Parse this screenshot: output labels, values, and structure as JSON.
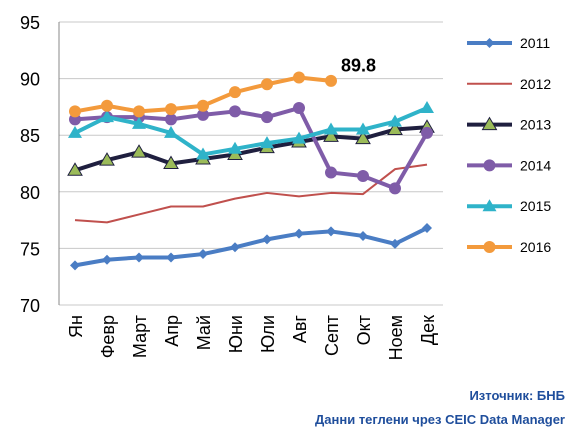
{
  "chart_data": {
    "type": "line",
    "categories": [
      "Ян",
      "Февр",
      "Март",
      "Апр",
      "Май",
      "Юни",
      "Юли",
      "Авг",
      "Септ",
      "Окт",
      "Ноем",
      "Дек"
    ],
    "series": [
      {
        "name": "2011",
        "color": "#4a7dc4",
        "marker": "diamond",
        "values": [
          73.5,
          74.0,
          74.2,
          74.2,
          74.5,
          75.1,
          75.8,
          76.3,
          76.5,
          76.1,
          75.4,
          76.8
        ]
      },
      {
        "name": "2012",
        "color": "#c0504d",
        "marker": "none",
        "values": [
          77.5,
          77.3,
          78.0,
          78.7,
          78.7,
          79.4,
          79.9,
          79.6,
          79.9,
          79.8,
          82.0,
          82.4
        ]
      },
      {
        "name": "2013",
        "color": "#1f1f3f",
        "marker": "triangle",
        "values": [
          81.9,
          82.8,
          83.5,
          82.5,
          82.9,
          83.3,
          83.9,
          84.4,
          84.9,
          84.7,
          85.5,
          85.7
        ]
      },
      {
        "name": "2014",
        "color": "#7f5ca8",
        "marker": "circle",
        "values": [
          86.4,
          86.6,
          86.6,
          86.4,
          86.8,
          87.1,
          86.6,
          87.4,
          81.7,
          81.4,
          80.3,
          85.2
        ]
      },
      {
        "name": "2015",
        "color": "#2fb3c9",
        "marker": "triangle",
        "values": [
          85.2,
          86.6,
          86.0,
          85.2,
          83.3,
          83.8,
          84.3,
          84.7,
          85.5,
          85.5,
          86.2,
          87.4
        ]
      },
      {
        "name": "2016",
        "color": "#f39a3c",
        "marker": "circle",
        "values": [
          87.1,
          87.6,
          87.1,
          87.3,
          87.6,
          88.8,
          89.5,
          90.1,
          89.8,
          null,
          null,
          null
        ]
      }
    ],
    "ylim": [
      70,
      95
    ],
    "yticks": [
      70,
      75,
      80,
      85,
      90,
      95
    ],
    "grid": true,
    "annotations": [
      {
        "text": "89.8"
      }
    ],
    "source": [
      "Източник: БНБ",
      "Данни теглени чрез CEIC Data Manager"
    ]
  }
}
